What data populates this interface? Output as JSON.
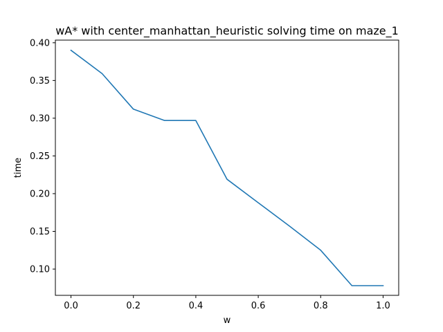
{
  "chart_data": {
    "type": "line",
    "title": "wA* with center_manhattan_heuristic solving time on maze_1",
    "xlabel": "w",
    "ylabel": "time",
    "xlim": [
      -0.05,
      1.05
    ],
    "ylim": [
      0.0652,
      0.4035
    ],
    "x_ticks": [
      0.0,
      0.2,
      0.4,
      0.6,
      0.8,
      1.0
    ],
    "x_tick_labels": [
      "0.0",
      "0.2",
      "0.4",
      "0.6",
      "0.8",
      "1.0"
    ],
    "y_ticks": [
      0.1,
      0.15,
      0.2,
      0.25,
      0.3,
      0.35,
      0.4
    ],
    "y_tick_labels": [
      "0.10",
      "0.15",
      "0.20",
      "0.25",
      "0.30",
      "0.35",
      "0.40"
    ],
    "grid": false,
    "series": [
      {
        "color": "#1f77b4",
        "x": [
          0.0,
          0.1,
          0.2,
          0.3,
          0.4,
          0.5,
          0.6,
          0.7,
          0.8,
          0.9,
          1.0
        ],
        "values": [
          0.39,
          0.359,
          0.312,
          0.297,
          0.297,
          0.219,
          0.188,
          0.157,
          0.125,
          0.078,
          0.078
        ]
      }
    ]
  }
}
